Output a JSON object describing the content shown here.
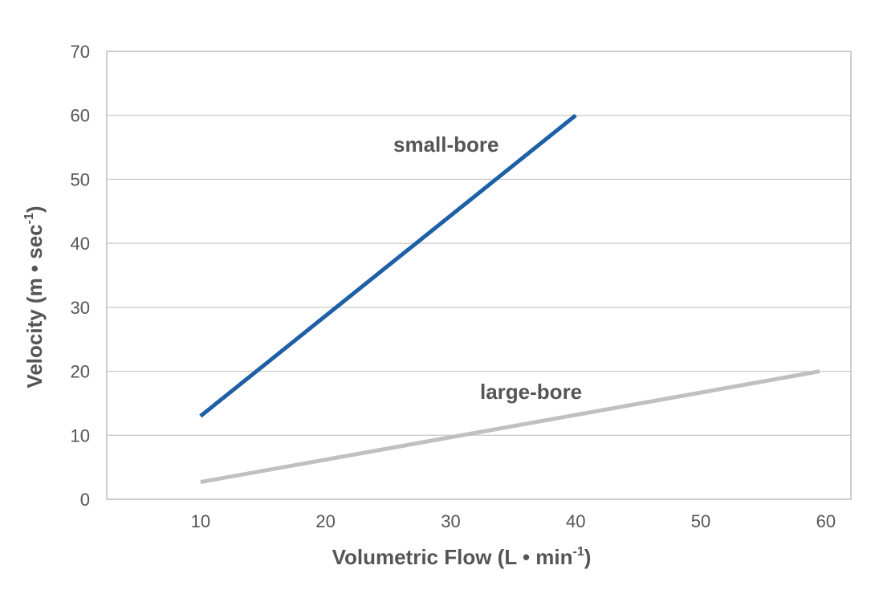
{
  "chart_data": {
    "type": "line",
    "xlabel": "Volumetric Flow (L • min-1)",
    "ylabel": "Velocity (m • sec-1)",
    "xlabel_parts": {
      "main": "Volumetric Flow (L • min",
      "sup": "-1",
      "end": ")"
    },
    "ylabel_parts": {
      "main": "Velocity (m • sec",
      "sup": "-1",
      "end": ")"
    },
    "xlim": [
      2.5,
      62
    ],
    "ylim": [
      0,
      70
    ],
    "xticks": [
      10,
      20,
      30,
      40,
      50,
      60
    ],
    "yticks": [
      0,
      10,
      20,
      30,
      40,
      50,
      60,
      70
    ],
    "grid": true,
    "series": [
      {
        "name": "small-bore",
        "color": "#1f5fa6",
        "x": [
          10,
          40
        ],
        "y": [
          13,
          60
        ]
      },
      {
        "name": "large-bore",
        "color": "#c0c0c0",
        "x": [
          10,
          59.5
        ],
        "y": [
          2.7,
          20
        ]
      }
    ]
  }
}
